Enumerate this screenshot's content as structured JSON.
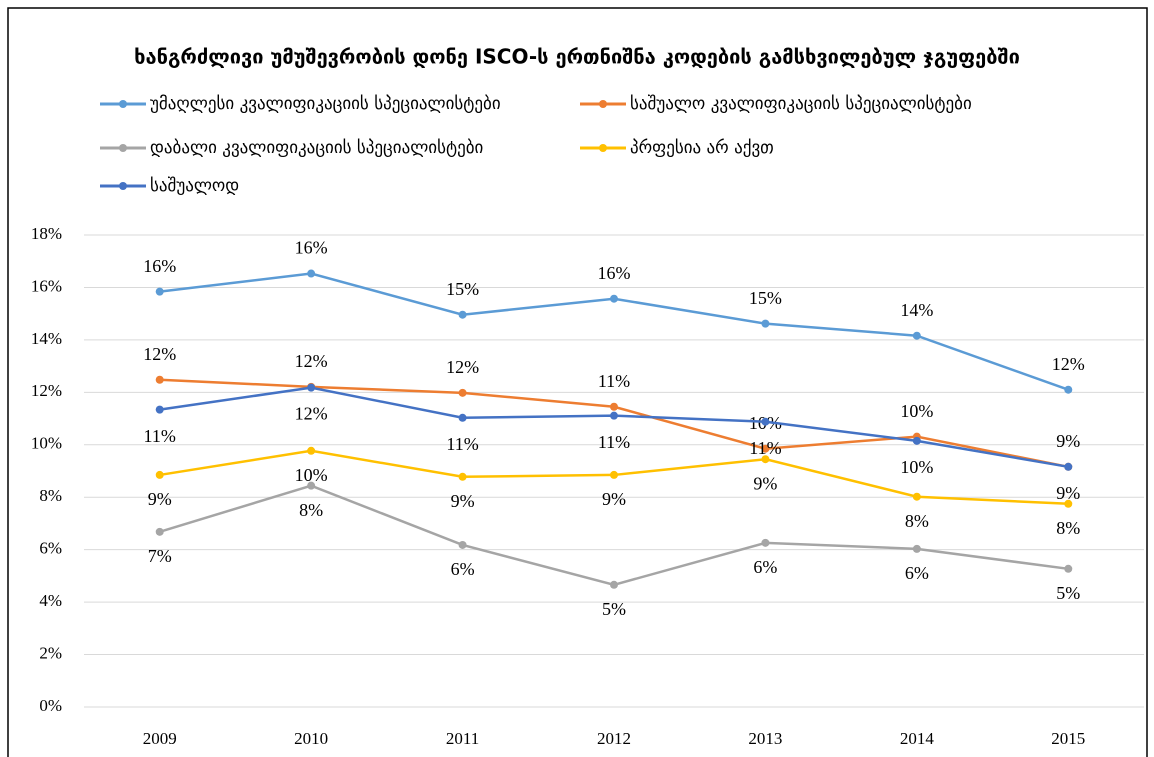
{
  "chart_data": {
    "type": "line",
    "title": "ხანგრძლივი უმუშევრობის დონე ISCO-ს ერთნიშნა კოდების გამსხვილებულ ჯგუფებში",
    "categories": [
      "2009",
      "2010",
      "2011",
      "2012",
      "2013",
      "2014",
      "2015"
    ],
    "series": [
      {
        "name": "უმაღლესი კვალიფიკაციის სპეციალისტები",
        "color": "#5b9bd5",
        "values": [
          15.84,
          16.53,
          14.96,
          15.57,
          14.62,
          14.16,
          12.1
        ],
        "value_labels": [
          "16%",
          "16%",
          "15%",
          "16%",
          "15%",
          "14%",
          "12%"
        ]
      },
      {
        "name": "საშუალო კვალიფიკაციის სპეციალისტები",
        "color": "#ed7d31",
        "values": [
          12.48,
          12.21,
          11.98,
          11.45,
          9.85,
          10.31,
          9.16
        ],
        "value_labels": [
          "12%",
          "12%",
          "12%",
          "11%",
          "10%",
          "10%",
          "9%"
        ]
      },
      {
        "name": "დაბალი კვალიფიკაციის სპეციალისტები",
        "color": "#a5a5a5",
        "values": [
          6.68,
          8.44,
          6.18,
          4.66,
          6.26,
          6.03,
          5.27
        ],
        "value_labels": [
          "7%",
          "8%",
          "6%",
          "5%",
          "6%",
          "6%",
          "5%"
        ]
      },
      {
        "name": "პრფესია არ აქვთ",
        "color": "#ffc000",
        "values": [
          8.85,
          9.77,
          8.78,
          8.85,
          9.45,
          8.02,
          7.75
        ],
        "value_labels": [
          "9%",
          "10%",
          "9%",
          "9%",
          "9%",
          "8%",
          "8%"
        ]
      },
      {
        "name": "საშუალოდ",
        "color": "#4472c4",
        "values": [
          11.34,
          12.18,
          11.03,
          11.11,
          10.88,
          10.15,
          9.16
        ],
        "value_labels": [
          "11%",
          "12%",
          "11%",
          "11%",
          "11%",
          "10%",
          "9%"
        ]
      }
    ],
    "ylim": [
      0,
      18
    ],
    "yticks": [
      {
        "value": 0,
        "label": "0%"
      },
      {
        "value": 2,
        "label": "2%"
      },
      {
        "value": 4,
        "label": "4%"
      },
      {
        "value": 6,
        "label": "6%"
      },
      {
        "value": 8,
        "label": "8%"
      },
      {
        "value": 10,
        "label": "10%"
      },
      {
        "value": 12,
        "label": "12%"
      },
      {
        "value": 14,
        "label": "14%"
      },
      {
        "value": 16,
        "label": "16%"
      },
      {
        "value": 18,
        "label": "18%"
      }
    ],
    "grid": true
  }
}
